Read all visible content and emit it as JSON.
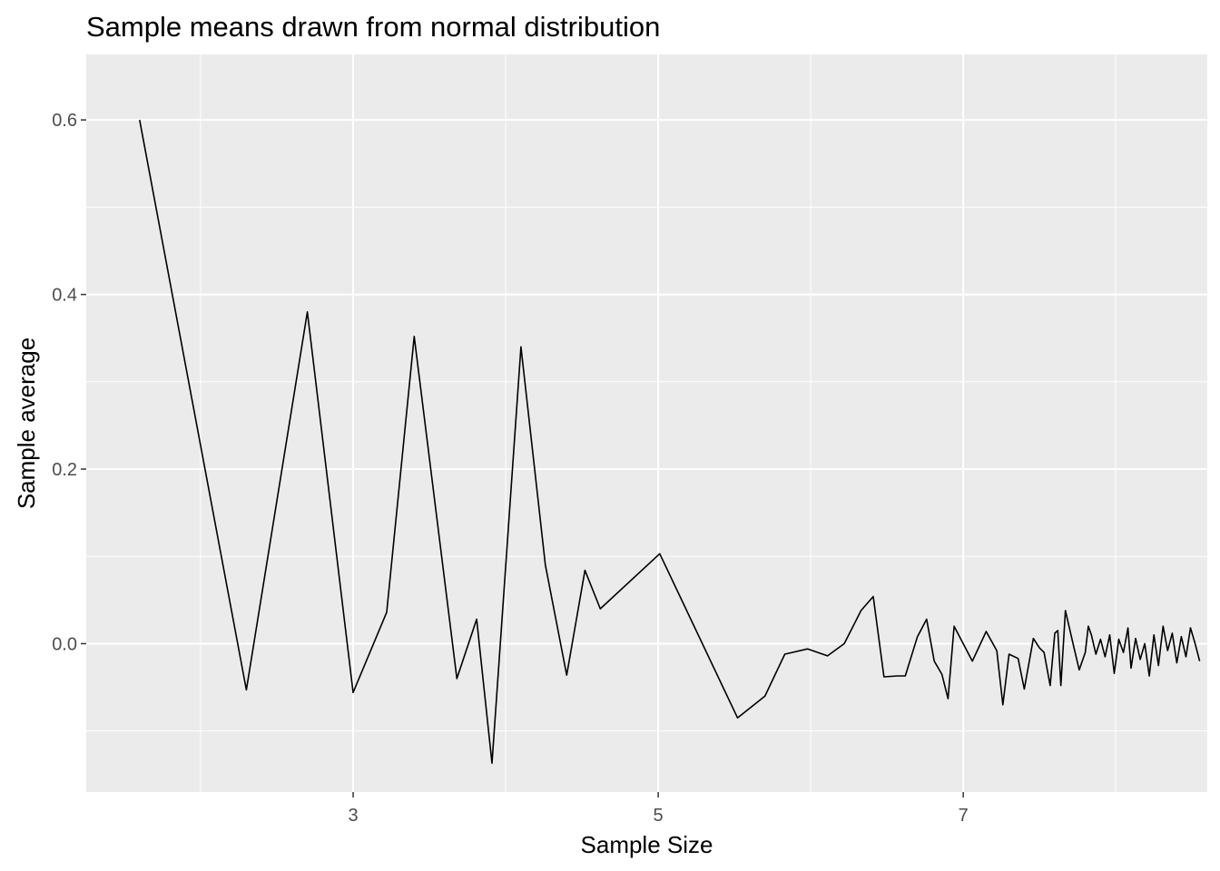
{
  "chart_data": {
    "type": "line",
    "title": "Sample means drawn from normal distribution",
    "xlabel": "Sample Size",
    "ylabel": "Sample average",
    "xlim": [
      1.25,
      8.6
    ],
    "ylim": [
      -0.17,
      0.675
    ],
    "xticks": [
      3,
      5,
      7
    ],
    "yticks": [
      0.0,
      0.2,
      0.4,
      0.6
    ],
    "x_minor_gridlines": [
      2,
      4,
      6,
      8
    ],
    "y_minor_gridlines": [
      -0.1,
      0.1,
      0.3,
      0.5
    ],
    "ytick_labels": [
      "0.0",
      "0.2",
      "0.4",
      "0.6"
    ],
    "xtick_labels": [
      "3",
      "5",
      "7"
    ],
    "grid": true,
    "panel_background": "#ebebeb",
    "line_color": "#000000",
    "series": [
      {
        "x": [
          1.6,
          2.3,
          2.7,
          3.0,
          3.22,
          3.4,
          3.68,
          3.81,
          3.91,
          4.1,
          4.26,
          4.4,
          4.52,
          4.62,
          5.01,
          5.52,
          5.7,
          5.83,
          5.98,
          6.11,
          6.22,
          6.33,
          6.41,
          6.48,
          6.57,
          6.62,
          6.7,
          6.76,
          6.81,
          6.86,
          6.9,
          6.94,
          7.06,
          7.15,
          7.22,
          7.26,
          7.3,
          7.36,
          7.4,
          7.46,
          7.5,
          7.53,
          7.57,
          7.6,
          7.62,
          7.64,
          7.67,
          7.72,
          7.76,
          7.8,
          7.82,
          7.84,
          7.87,
          7.9,
          7.93,
          7.96,
          7.99,
          8.02,
          8.05,
          8.08,
          8.1,
          8.13,
          8.16,
          8.19,
          8.22,
          8.25,
          8.28,
          8.31,
          8.34,
          8.37,
          8.4,
          8.43,
          8.46,
          8.49,
          8.52,
          8.55
        ],
        "y": [
          0.6,
          -0.053,
          0.38,
          -0.056,
          0.036,
          0.352,
          -0.04,
          0.028,
          -0.137,
          0.34,
          0.09,
          -0.036,
          0.084,
          0.04,
          0.103,
          -0.085,
          -0.06,
          -0.012,
          -0.006,
          -0.014,
          0.0,
          0.038,
          0.054,
          -0.038,
          -0.037,
          -0.037,
          0.008,
          0.028,
          -0.02,
          -0.035,
          -0.063,
          0.02,
          -0.02,
          0.014,
          -0.008,
          -0.07,
          -0.012,
          -0.017,
          -0.052,
          0.006,
          -0.005,
          -0.01,
          -0.048,
          0.012,
          0.015,
          -0.048,
          0.038,
          0.0,
          -0.03,
          -0.01,
          0.02,
          0.01,
          -0.012,
          0.005,
          -0.015,
          0.01,
          -0.034,
          0.005,
          -0.01,
          0.018,
          -0.028,
          0.006,
          -0.018,
          0.0,
          -0.037,
          0.01,
          -0.025,
          0.02,
          -0.008,
          0.012,
          -0.022,
          0.008,
          -0.015,
          0.018,
          0.0,
          -0.02
        ]
      }
    ]
  }
}
